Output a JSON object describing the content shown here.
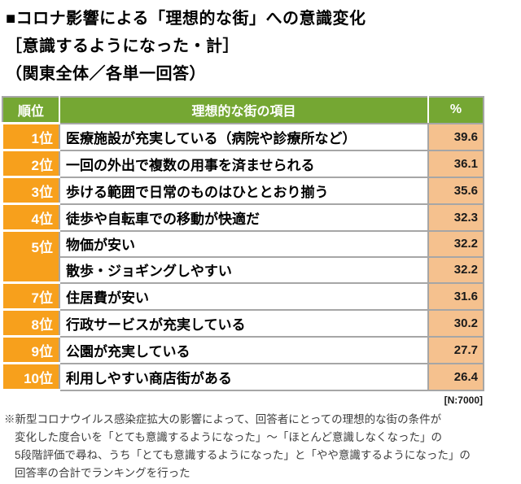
{
  "title": {
    "line1": "■コロナ影響による「理想的な街」への意識変化",
    "line2": "［意識するようになった・計］",
    "line3": "（関東全体／各単一回答）"
  },
  "table": {
    "headers": {
      "rank": "順位",
      "item": "理想的な街の項目",
      "percent": "%"
    },
    "rows": [
      {
        "rank": "1位",
        "item": "医療施設が充実している（病院や診療所など）",
        "percent": "39.6"
      },
      {
        "rank": "2位",
        "item": "一回の外出で複数の用事を済ませられる",
        "percent": "36.1"
      },
      {
        "rank": "3位",
        "item": "歩ける範囲で日常のものはひととおり揃う",
        "percent": "35.6"
      },
      {
        "rank": "4位",
        "item": "徒歩や自転車での移動が快適だ",
        "percent": "32.3"
      },
      {
        "rank": "5位",
        "item": "物価が安い",
        "percent": "32.2"
      },
      {
        "item": "散歩・ジョギングしやすい",
        "percent": "32.2"
      },
      {
        "rank": "7位",
        "item": "住居費が安い",
        "percent": "31.6"
      },
      {
        "rank": "8位",
        "item": "行政サービスが充実している",
        "percent": "30.2"
      },
      {
        "rank": "9位",
        "item": "公園が充実している",
        "percent": "27.7"
      },
      {
        "rank": "10位",
        "item": "利用しやすい商店街がある",
        "percent": "26.4"
      }
    ],
    "sample_note": "[N:7000]"
  },
  "footnote": {
    "line1": "※新型コロナウイルス感染症拡大の影響によって、回答者にとっての理想的な街の条件が",
    "line2": "変化した度合いを「とても意識するようになった」～「ほとんど意識しなくなった」の",
    "line3": "5段階評価で尋ね、うち「とても意識するようになった」と「やや意識するようになった」の",
    "line4": "回答率の合計でランキングを行った"
  },
  "colors": {
    "header_green": "#75A733",
    "rank_orange": "#F7A01C",
    "percent_peach": "#F5C18E",
    "border_gray": "#A6A6A6"
  },
  "chart_data": {
    "type": "table",
    "title": "コロナ影響による「理想的な街」への意識変化［意識するようになった・計］（関東全体／各単一回答）",
    "columns": [
      "順位",
      "理想的な街の項目",
      "%"
    ],
    "ranks": [
      "1位",
      "2位",
      "3位",
      "4位",
      "5位",
      "5位",
      "7位",
      "8位",
      "9位",
      "10位"
    ],
    "categories": [
      "医療施設が充実している（病院や診療所など）",
      "一回の外出で複数の用事を済ませられる",
      "歩ける範囲で日常のものはひととおり揃う",
      "徒歩や自転車での移動が快適だ",
      "物価が安い",
      "散歩・ジョギングしやすい",
      "住居費が安い",
      "行政サービスが充実している",
      "公園が充実している",
      "利用しやすい商店街がある"
    ],
    "values": [
      39.6,
      36.1,
      35.6,
      32.3,
      32.2,
      32.2,
      31.6,
      30.2,
      27.7,
      26.4
    ],
    "sample_size": "N:7000"
  }
}
